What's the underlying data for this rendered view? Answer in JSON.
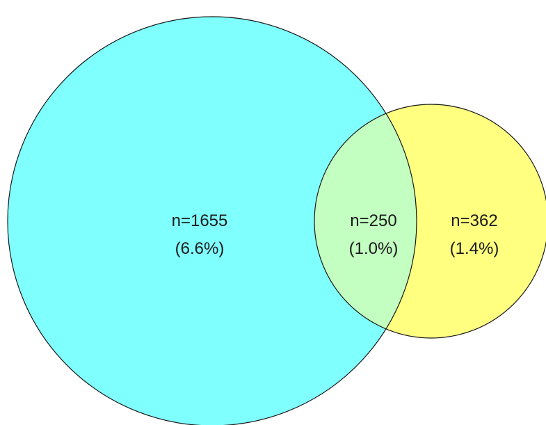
{
  "colors": {
    "set_a_fill": "#80ffff",
    "set_b_fill": "#ffff80",
    "overlap_fill": "#c2ffc0",
    "outline": "#1a1a1a"
  },
  "regions": {
    "a_only": {
      "count": "n=1655",
      "percent": "(6.6%)"
    },
    "overlap": {
      "count": "n=250",
      "percent": "(1.0%)"
    },
    "b_only": {
      "count": "n=362",
      "percent": "(1.4%)"
    }
  }
}
